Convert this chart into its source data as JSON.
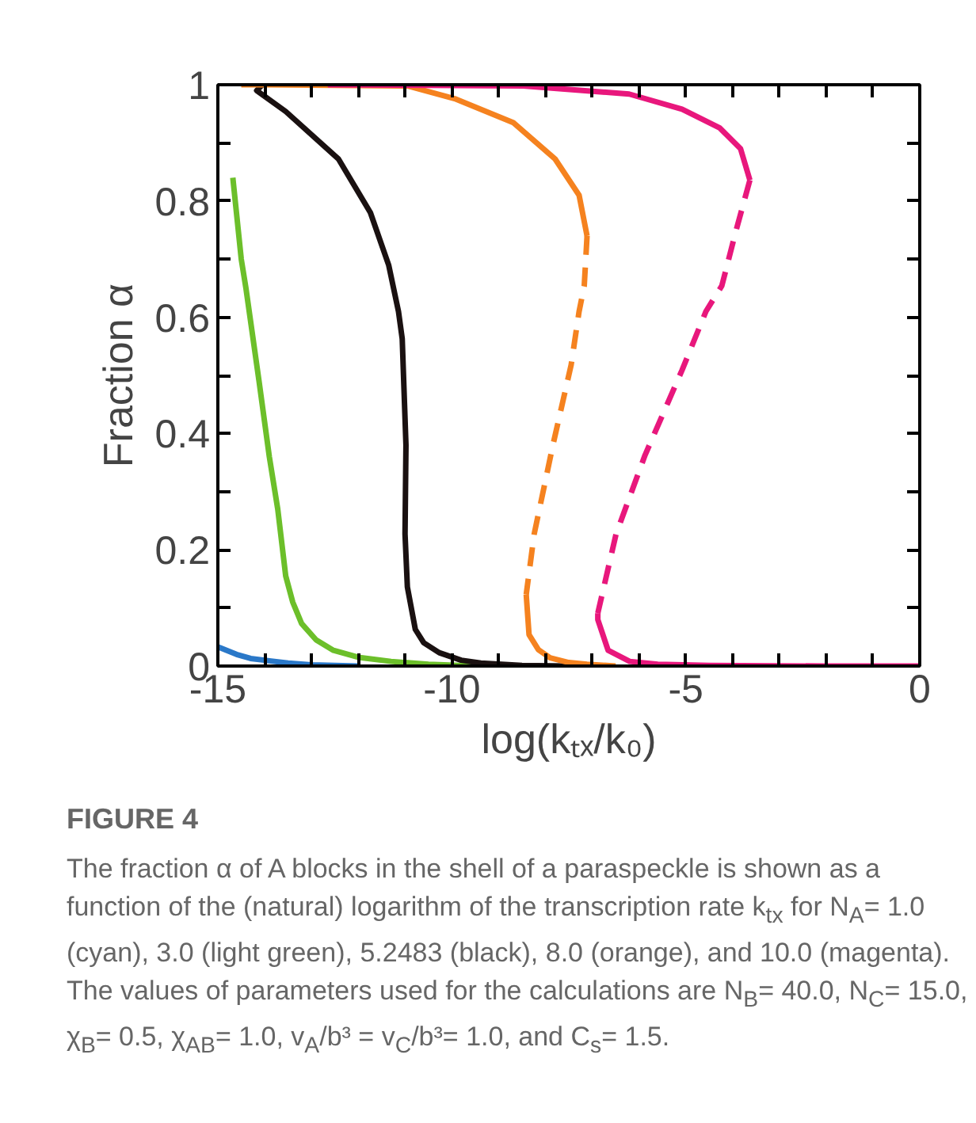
{
  "chart_data": {
    "type": "line",
    "xlabel": "log(kₜₓ/k₀)",
    "ylabel": "Fraction α",
    "xlim": [
      -15,
      0
    ],
    "ylim": [
      0,
      1
    ],
    "xticks": [
      {
        "value": -15,
        "label": "-15"
      },
      {
        "value": -14,
        "label": null
      },
      {
        "value": -13,
        "label": null
      },
      {
        "value": -12,
        "label": null
      },
      {
        "value": -11,
        "label": null
      },
      {
        "value": -10,
        "label": "-10"
      },
      {
        "value": -9,
        "label": null
      },
      {
        "value": -8,
        "label": null
      },
      {
        "value": -7,
        "label": null
      },
      {
        "value": -6,
        "label": null
      },
      {
        "value": -5,
        "label": "-5"
      },
      {
        "value": -4,
        "label": null
      },
      {
        "value": -3,
        "label": null
      },
      {
        "value": -2,
        "label": null
      },
      {
        "value": -1,
        "label": null
      },
      {
        "value": 0,
        "label": "0"
      }
    ],
    "yticks": [
      0,
      {
        "value": 0.1,
        "label": null
      },
      0.2,
      {
        "value": 0.3,
        "label": null
      },
      0.4,
      {
        "value": 0.5,
        "label": null
      },
      0.6,
      {
        "value": 0.7,
        "label": null
      },
      0.8,
      {
        "value": 0.9,
        "label": null
      },
      1
    ],
    "grid": false,
    "series": [
      {
        "color": "#2a78c8",
        "line_style": "solid",
        "x": [
          -15,
          -14.6,
          -14.3,
          -13.9,
          -13.5,
          -13.0,
          -12.0
        ],
        "values": [
          0.033,
          0.02,
          0.013,
          0.009,
          0.005,
          0.002,
          0.0
        ]
      },
      {
        "color": "#6cbf2a",
        "line_style": "solid",
        "x": [
          -14.68,
          -14.5,
          -14.4,
          -14.12,
          -13.9,
          -13.72,
          -13.55,
          -13.4,
          -13.21,
          -12.9,
          -12.53,
          -12.0,
          -11.3,
          -10.5,
          -9.5
        ],
        "values": [
          0.84,
          0.7,
          0.65,
          0.49,
          0.36,
          0.27,
          0.155,
          0.11,
          0.073,
          0.045,
          0.027,
          0.015,
          0.008,
          0.003,
          0.0
        ]
      },
      {
        "color": "#1a1111",
        "line_style": "solid",
        "x": [
          -14.05,
          -14.17,
          -13.55,
          -12.42,
          -11.74,
          -11.35,
          -11.14,
          -11.06,
          -10.98,
          -11.0,
          -10.95,
          -10.78,
          -10.6,
          -10.27,
          -9.8,
          -9.38,
          -8.5,
          -7.5
        ],
        "values": [
          1.0,
          0.99,
          0.954,
          0.872,
          0.78,
          0.69,
          0.61,
          0.563,
          0.38,
          0.227,
          0.136,
          0.063,
          0.04,
          0.023,
          0.01,
          0.005,
          0.001,
          0.0
        ]
      },
      {
        "color": "#f5821f",
        "line_style": "solid",
        "x": [
          -14.5,
          -13.96,
          -12.5,
          -10.95,
          -9.94,
          -8.69,
          -7.79,
          -7.28,
          -7.11
        ],
        "values": [
          1.0,
          1.0,
          0.999,
          0.998,
          0.976,
          0.935,
          0.872,
          0.81,
          0.74
        ]
      },
      {
        "color": "#f5821f",
        "line_style": "dashed",
        "x": [
          -7.11,
          -7.17,
          -7.28,
          -7.45,
          -7.84,
          -8.24,
          -8.41
        ],
        "values": [
          0.74,
          0.654,
          0.61,
          0.518,
          0.38,
          0.227,
          0.123
        ]
      },
      {
        "color": "#f5821f",
        "line_style": "solid",
        "x": [
          -8.41,
          -8.35,
          -8.15,
          -7.9,
          -7.5,
          -7.11,
          -6.5
        ],
        "values": [
          0.123,
          0.054,
          0.028,
          0.014,
          0.006,
          0.003,
          0.0
        ]
      },
      {
        "color": "#e8177c",
        "line_style": "solid",
        "x": [
          -12.65,
          -10.5,
          -8.47,
          -6.21,
          -5.08,
          -4.28,
          -3.83,
          -3.63
        ],
        "values": [
          1.0,
          0.999,
          0.998,
          0.984,
          0.958,
          0.926,
          0.89,
          0.836
        ]
      },
      {
        "color": "#e8177c",
        "line_style": "dashed",
        "x": [
          -3.63,
          -3.94,
          -4.23,
          -4.57,
          -5.08,
          -5.87,
          -6.49,
          -6.88
        ],
        "values": [
          0.836,
          0.745,
          0.654,
          0.61,
          0.509,
          0.363,
          0.227,
          0.091
        ]
      },
      {
        "color": "#e8177c",
        "line_style": "solid",
        "x": [
          -6.88,
          -6.88,
          -6.66,
          -6.2,
          -5.6,
          -4.5,
          -2.0,
          0.0
        ],
        "values": [
          0.091,
          0.08,
          0.027,
          0.008,
          0.003,
          0.001,
          0.0,
          0.0
        ]
      }
    ],
    "annotations": [
      "FIGURE 4",
      "The fraction α of A blocks in the shell of a paraspeckle is shown as a function of the (natural) logarithm of the transcription rate k$_{tx}$ for N$_{A}$= 1.0 (cyan), 3.0 (light green), 5.2483 (black), 8.0 (orange), and 10.0 (magenta). The values of parameters used for the calculations are N$_{B}$= 40.0, N$_{C}$= 15.0, χ$_{B}$= 0.5, χ$_{AB}$= 1.0, v$_{A}$/b³ = v$_{C}$/b³= 1.0, and C$_{s}$= 1.5."
    ]
  }
}
